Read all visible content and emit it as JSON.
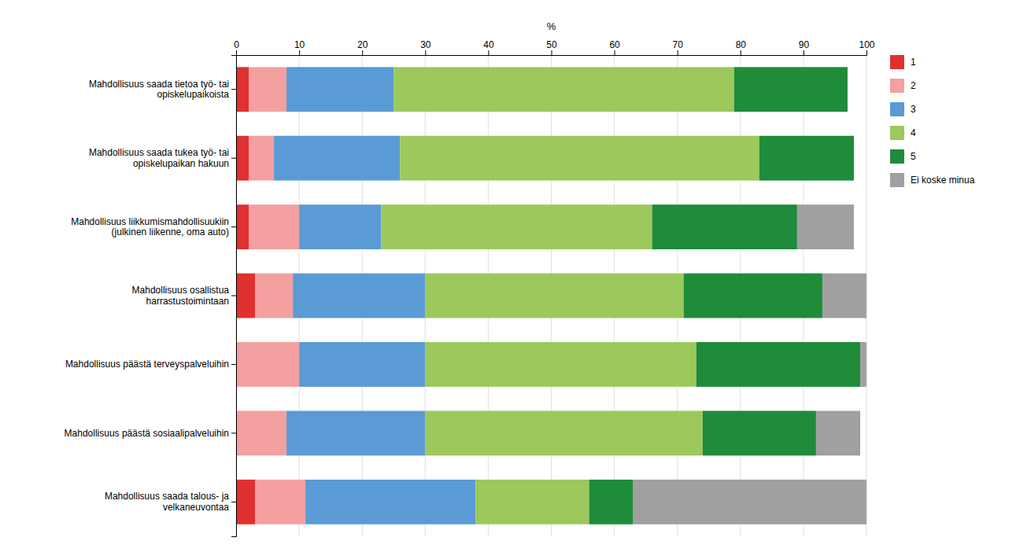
{
  "chart_data": {
    "type": "bar",
    "orientation": "horizontal",
    "stacked": true,
    "categories": [
      "Mahdollisuus saada tietoa työ- tai\nopiskelupaikoista",
      "Mahdollisuus saada tukea työ- tai\nopiskelupaikan hakuun",
      "Mahdollisuus liikkumismahdollisuukiin\n(julkinen liikenne, oma auto)",
      "Mahdollisuus osallistua\nharrastustoimintaan",
      "Mahdollisuus päästä terveyspalveluihin",
      "Mahdollisuus päästä sosiaalipalveluihin",
      "Mahdollisuus saada talous- ja\nvelkaneuvontaa"
    ],
    "series": [
      {
        "name": "1",
        "color": "#e03030",
        "values": [
          2,
          2,
          2,
          3,
          0,
          0,
          3
        ]
      },
      {
        "name": "2",
        "color": "#f4a0a0",
        "values": [
          6,
          4,
          8,
          6,
          10,
          8,
          8
        ]
      },
      {
        "name": "3",
        "color": "#5b9bd5",
        "values": [
          17,
          20,
          13,
          21,
          20,
          22,
          27
        ]
      },
      {
        "name": "4",
        "color": "#9dc85c",
        "values": [
          54,
          57,
          43,
          41,
          43,
          44,
          18
        ]
      },
      {
        "name": "5",
        "color": "#1e8c3a",
        "values": [
          18,
          15,
          23,
          22,
          26,
          18,
          7
        ]
      },
      {
        "name": "Ei koske minua",
        "color": "#a0a0a0",
        "values": [
          0,
          0,
          9,
          7,
          1,
          7,
          37
        ]
      }
    ],
    "xlabel": "%",
    "xlim": [
      0,
      100
    ],
    "xticks": [
      0,
      10,
      20,
      30,
      40,
      50,
      60,
      70,
      80,
      90,
      100
    ],
    "grid": true,
    "legend": "right"
  }
}
